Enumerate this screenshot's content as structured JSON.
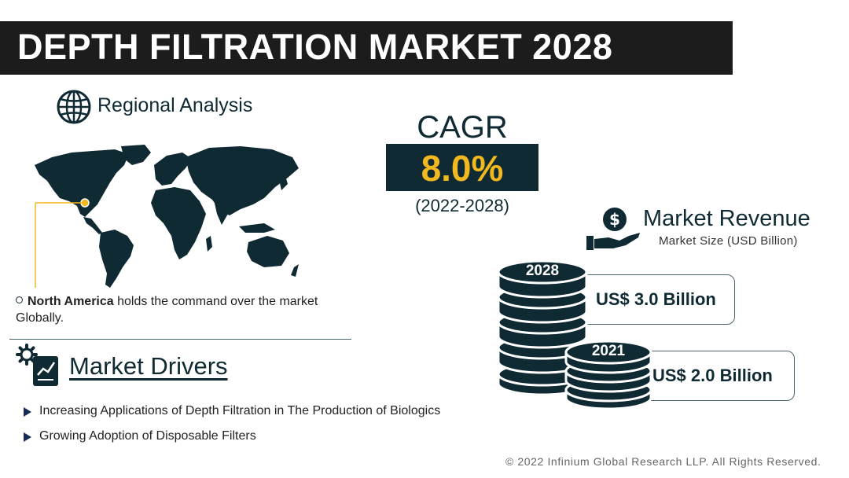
{
  "header": {
    "title": "DEPTH FILTRATION MARKET 2028"
  },
  "regional": {
    "heading": "Regional Analysis",
    "note_bold": "North America",
    "note_rest": " holds the command over the market Globally."
  },
  "drivers": {
    "heading": "Market Drivers",
    "items": [
      "Increasing Applications of Depth Filtration in The Production of Biologics",
      "Growing Adoption of Disposable Filters"
    ]
  },
  "cagr": {
    "label": "CAGR",
    "value": "8.0%",
    "period": "(2022-2028)"
  },
  "revenue": {
    "heading": "Market Revenue",
    "subheading": "Market Size (USD Billion)",
    "entries": [
      {
        "year": "2028",
        "value": "US$ 3.0 Billion"
      },
      {
        "year": "2021",
        "value": "US$ 2.0 Billion"
      }
    ]
  },
  "footer": {
    "copyright": "© 2022 Infinium Global Research LLP. All Rights Reserved."
  },
  "colors": {
    "dark": "#0f2a33",
    "accent": "#f2b81f",
    "title_bg": "#1c1c1c"
  },
  "icons": [
    "globe-icon",
    "world-map",
    "gear-document-icon",
    "dollar-hand-icon",
    "coin-stack-icon"
  ]
}
